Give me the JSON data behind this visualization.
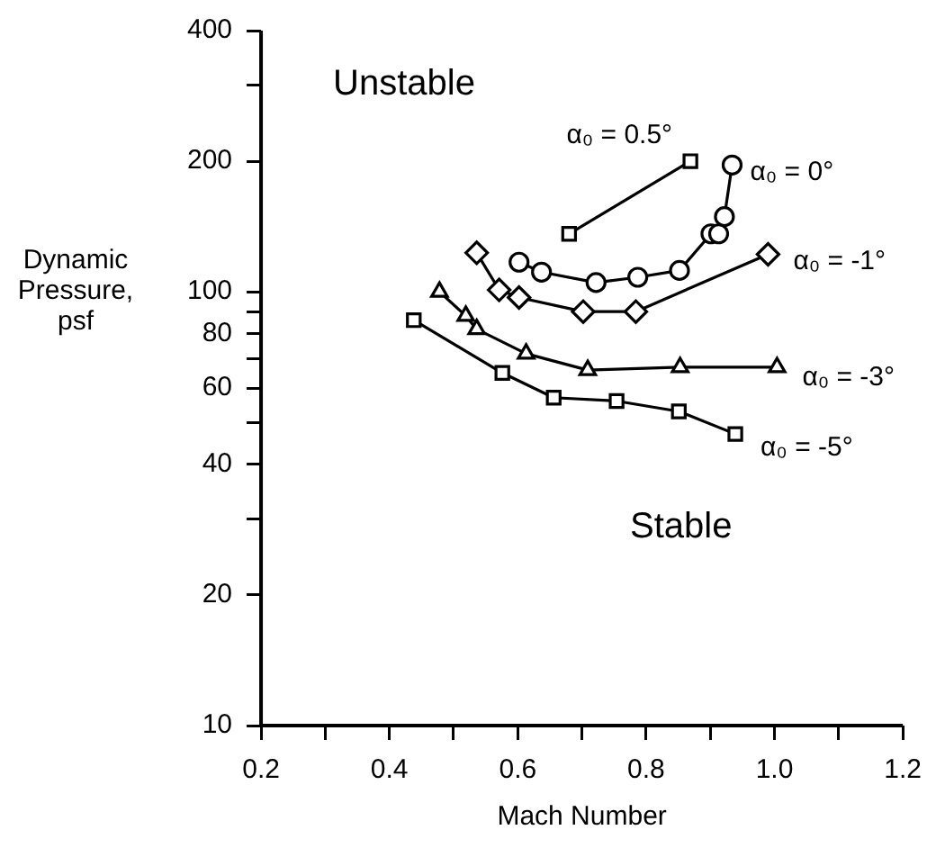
{
  "chart_data": {
    "type": "line",
    "xlabel": "Mach Number",
    "ylabel": "Dynamic Pressure, psf",
    "log": "y",
    "grid": false,
    "legend": false,
    "xlim": [
      0.2,
      1.2
    ],
    "xticks": [
      0.2,
      {
        "value": 0.3,
        "label": null
      },
      0.4,
      {
        "value": 0.5,
        "label": null
      },
      0.6,
      {
        "value": 0.7,
        "label": null
      },
      0.8,
      {
        "value": 0.9,
        "label": null
      },
      {
        "value": 1.0,
        "label": "1.0"
      },
      {
        "value": 1.1,
        "label": null
      },
      1.2
    ],
    "ylim": [
      10,
      400
    ],
    "yticks": [
      10,
      20,
      {
        "value": 30,
        "label": null
      },
      40,
      {
        "value": 50,
        "label": null
      },
      60,
      {
        "value": 70,
        "label": null
      },
      80,
      {
        "value": 90,
        "label": null
      },
      100,
      200,
      {
        "value": 300,
        "label": null
      },
      400
    ],
    "annotations": [
      "Unstable",
      "Stable"
    ],
    "series": [
      {
        "name": "α₀ = 0.5°",
        "color": "#000000",
        "marker": "square",
        "x": [
          0.68,
          0.869
        ],
        "values": [
          136,
          200
        ]
      },
      {
        "name": "α₀ = 0°",
        "color": "#000000",
        "marker": "circle",
        "x": [
          0.602,
          0.637,
          0.722,
          0.787,
          0.852,
          0.901,
          0.913,
          0.922,
          0.934
        ],
        "values": [
          117,
          111,
          105,
          108,
          112,
          136,
          136,
          149,
          196
        ]
      },
      {
        "name": "α₀ = -1°",
        "color": "#000000",
        "marker": "diamond",
        "x": [
          0.536,
          0.571,
          0.602,
          0.702,
          0.784,
          0.99
        ],
        "values": [
          123,
          101,
          97,
          90,
          90,
          122
        ]
      },
      {
        "name": "α₀ = -3°",
        "color": "#000000",
        "marker": "triangle",
        "x": [
          0.478,
          0.519,
          0.536,
          0.613,
          0.709,
          0.853,
          1.004
        ],
        "values": [
          100,
          88,
          82,
          72,
          66,
          67,
          67
        ]
      },
      {
        "name": "α₀ = -5°",
        "color": "#000000",
        "marker": "square",
        "x": [
          0.438,
          0.576,
          0.656,
          0.754,
          0.851,
          0.939
        ],
        "values": [
          86,
          65,
          57,
          56,
          53,
          47
        ]
      }
    ]
  }
}
